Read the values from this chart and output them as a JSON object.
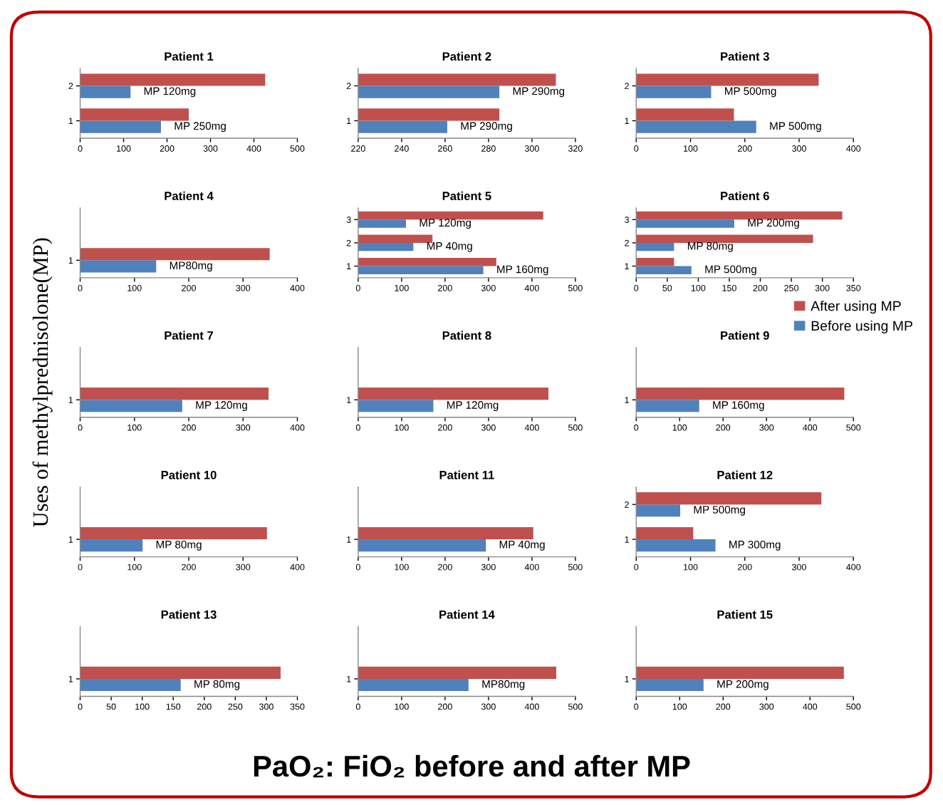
{
  "chart_data": [
    {
      "type": "bar",
      "orientation": "horizontal",
      "title": "Patient 1",
      "categories": [
        "2",
        "1"
      ],
      "series": [
        {
          "color": "#4f81bd",
          "values": [
            116,
            186
          ]
        },
        {
          "color": "#c0504d",
          "values": [
            426,
            250
          ]
        }
      ],
      "xlim": [
        0,
        500
      ],
      "xticks": [
        0,
        100,
        200,
        300,
        400,
        500
      ],
      "annotations": [
        "MP 120mg",
        "MP 250mg"
      ]
    },
    {
      "type": "bar",
      "orientation": "horizontal",
      "title": "Patient 2",
      "categories": [
        "2",
        "1"
      ],
      "series": [
        {
          "color": "#4f81bd",
          "values": [
            285,
            261
          ]
        },
        {
          "color": "#c0504d",
          "values": [
            311,
            285
          ]
        }
      ],
      "xlim": [
        220,
        320
      ],
      "xticks": [
        220,
        240,
        260,
        280,
        300,
        320
      ],
      "annotations": [
        "MP 290mg",
        "MP 290mg"
      ]
    },
    {
      "type": "bar",
      "orientation": "horizontal",
      "title": "Patient 3",
      "categories": [
        "2",
        "1"
      ],
      "series": [
        {
          "color": "#4f81bd",
          "values": [
            138,
            221
          ]
        },
        {
          "color": "#c0504d",
          "values": [
            336,
            180
          ]
        }
      ],
      "xlim": [
        0,
        400
      ],
      "xticks": [
        0,
        100,
        200,
        300,
        400
      ],
      "annotations": [
        "MP 500mg",
        "MP 500mg"
      ]
    },
    {
      "type": "bar",
      "orientation": "horizontal",
      "title": "Patient 4",
      "categories": [
        "1"
      ],
      "series": [
        {
          "color": "#4f81bd",
          "values": [
            140
          ]
        },
        {
          "color": "#c0504d",
          "values": [
            349
          ]
        }
      ],
      "xlim": [
        0,
        400
      ],
      "xticks": [
        0,
        100,
        200,
        300,
        400
      ],
      "annotations": [
        "MP80mg"
      ]
    },
    {
      "type": "bar",
      "orientation": "horizontal",
      "title": "Patient 5",
      "categories": [
        "3",
        "2",
        "1"
      ],
      "series": [
        {
          "color": "#4f81bd",
          "values": [
            110,
            127,
            288
          ]
        },
        {
          "color": "#c0504d",
          "values": [
            426,
            171,
            318
          ]
        }
      ],
      "xlim": [
        0,
        500
      ],
      "xticks": [
        0,
        100,
        200,
        300,
        400,
        500
      ],
      "annotations": [
        "MP 120mg",
        "MP 40mg",
        "MP 160mg"
      ]
    },
    {
      "type": "bar",
      "orientation": "horizontal",
      "title": "Patient 6",
      "categories": [
        "3",
        "2",
        "1"
      ],
      "series": [
        {
          "color": "#4f81bd",
          "values": [
            158,
            61,
            89
          ]
        },
        {
          "color": "#c0504d",
          "values": [
            332,
            285,
            61
          ]
        }
      ],
      "xlim": [
        0,
        350
      ],
      "xticks": [
        0,
        50,
        100,
        150,
        200,
        250,
        300,
        350
      ],
      "annotations": [
        "MP 200mg",
        "MP 80mg",
        "MP 500mg"
      ]
    },
    {
      "type": "bar",
      "orientation": "horizontal",
      "title": "Patient 7",
      "ylabel": "Uses of methylprednisolone(MP)",
      "categories": [
        "1"
      ],
      "series": [
        {
          "color": "#4f81bd",
          "values": [
            188
          ]
        },
        {
          "color": "#c0504d",
          "values": [
            347
          ]
        }
      ],
      "xlim": [
        0,
        400
      ],
      "xticks": [
        0,
        100,
        200,
        300,
        400
      ],
      "annotations": [
        "MP 120mg"
      ]
    },
    {
      "type": "bar",
      "orientation": "horizontal",
      "title": "Patient 8",
      "categories": [
        "1"
      ],
      "series": [
        {
          "color": "#4f81bd",
          "values": [
            173
          ]
        },
        {
          "color": "#c0504d",
          "values": [
            438
          ]
        }
      ],
      "xlim": [
        0,
        500
      ],
      "xticks": [
        0,
        100,
        200,
        300,
        400,
        500
      ],
      "annotations": [
        "MP 120mg"
      ]
    },
    {
      "type": "bar",
      "orientation": "horizontal",
      "title": "Patient 9",
      "categories": [
        "1"
      ],
      "series": [
        {
          "name": "Before using MP",
          "color": "#4f81bd",
          "values": [
            145
          ]
        },
        {
          "name": "After using MP",
          "color": "#c0504d",
          "values": [
            479
          ]
        }
      ],
      "xlim": [
        0,
        500
      ],
      "xticks": [
        0,
        100,
        200,
        300,
        400,
        500
      ],
      "legend": "top right",
      "annotations": [
        "MP 160mg"
      ]
    },
    {
      "type": "bar",
      "orientation": "horizontal",
      "title": "Patient 10",
      "categories": [
        "1"
      ],
      "series": [
        {
          "color": "#4f81bd",
          "values": [
            115
          ]
        },
        {
          "color": "#c0504d",
          "values": [
            344
          ]
        }
      ],
      "xlim": [
        0,
        400
      ],
      "xticks": [
        0,
        100,
        200,
        300,
        400
      ],
      "annotations": [
        "MP 80mg"
      ]
    },
    {
      "type": "bar",
      "orientation": "horizontal",
      "title": "Patient 11",
      "categories": [
        "1"
      ],
      "series": [
        {
          "color": "#4f81bd",
          "values": [
            294
          ]
        },
        {
          "color": "#c0504d",
          "values": [
            403
          ]
        }
      ],
      "xlim": [
        0,
        500
      ],
      "xticks": [
        0,
        100,
        200,
        300,
        400,
        500
      ],
      "annotations": [
        "MP 40mg"
      ]
    },
    {
      "type": "bar",
      "orientation": "horizontal",
      "title": "Patient 12",
      "categories": [
        "2",
        "1"
      ],
      "series": [
        {
          "color": "#4f81bd",
          "values": [
            81,
            146
          ]
        },
        {
          "color": "#c0504d",
          "values": [
            341,
            105
          ]
        }
      ],
      "xlim": [
        0,
        400
      ],
      "xticks": [
        0,
        100,
        200,
        300,
        400
      ],
      "annotations": [
        "MP 500mg",
        "MP 300mg"
      ]
    },
    {
      "type": "bar",
      "orientation": "horizontal",
      "title": "Patient 13",
      "categories": [
        "1"
      ],
      "series": [
        {
          "color": "#4f81bd",
          "values": [
            162
          ]
        },
        {
          "color": "#c0504d",
          "values": [
            323
          ]
        }
      ],
      "xlim": [
        0,
        350
      ],
      "xticks": [
        0,
        50,
        100,
        150,
        200,
        250,
        300,
        350
      ],
      "annotations": [
        "MP 80mg"
      ]
    },
    {
      "type": "bar",
      "orientation": "horizontal",
      "title": "Patient 14",
      "categories": [
        "1"
      ],
      "series": [
        {
          "color": "#4f81bd",
          "values": [
            254
          ]
        },
        {
          "color": "#c0504d",
          "values": [
            456
          ]
        }
      ],
      "xlim": [
        0,
        500
      ],
      "xticks": [
        0,
        100,
        200,
        300,
        400,
        500
      ],
      "annotations": [
        "MP80mg"
      ]
    },
    {
      "type": "bar",
      "orientation": "horizontal",
      "title": "Patient 15",
      "categories": [
        "1"
      ],
      "series": [
        {
          "color": "#4f81bd",
          "values": [
            155
          ]
        },
        {
          "color": "#c0504d",
          "values": [
            478
          ]
        }
      ],
      "xlim": [
        0,
        500
      ],
      "xticks": [
        0,
        100,
        200,
        300,
        400,
        500
      ],
      "annotations": [
        "MP 200mg"
      ]
    },
    {
      "type": "other",
      "title": "PaO₂: FiO₂ before and after MP"
    }
  ]
}
